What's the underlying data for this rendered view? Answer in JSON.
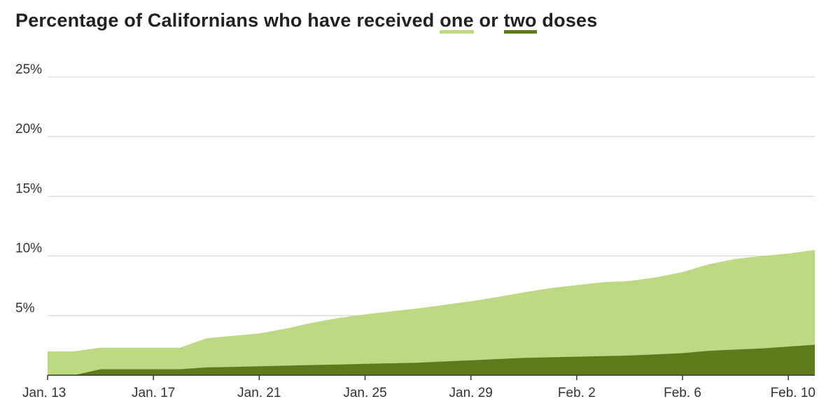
{
  "title": {
    "prefix": "Percentage of Californians who have received ",
    "one_word": "one",
    "middle": " or ",
    "two_word": "two",
    "suffix": " doses"
  },
  "colors": {
    "one_dose": "#bdd984",
    "two_doses": "#5e7a1c",
    "grid": "#d9d9d9",
    "axis": "#333333"
  },
  "chart_data": {
    "type": "area",
    "x": [
      "Jan. 13",
      "Jan. 14",
      "Jan. 15",
      "Jan. 16",
      "Jan. 17",
      "Jan. 18",
      "Jan. 19",
      "Jan. 20",
      "Jan. 21",
      "Jan. 22",
      "Jan. 23",
      "Jan. 24",
      "Jan. 25",
      "Jan. 26",
      "Jan. 27",
      "Jan. 28",
      "Jan. 29",
      "Jan. 30",
      "Jan. 31",
      "Feb. 1",
      "Feb. 2",
      "Feb. 3",
      "Feb. 4",
      "Feb. 5",
      "Feb. 6",
      "Feb. 7",
      "Feb. 8",
      "Feb. 9",
      "Feb. 10",
      "Feb. 11"
    ],
    "series": [
      {
        "name": "one",
        "values": [
          2.0,
          2.0,
          2.3,
          2.3,
          2.3,
          2.3,
          3.1,
          3.3,
          3.5,
          3.9,
          4.4,
          4.8,
          5.1,
          5.35,
          5.6,
          5.9,
          6.2,
          6.55,
          6.95,
          7.3,
          7.55,
          7.8,
          7.9,
          8.2,
          8.65,
          9.3,
          9.75,
          10.0,
          10.2,
          10.5
        ]
      },
      {
        "name": "two",
        "values": [
          0.0,
          0.0,
          0.5,
          0.5,
          0.5,
          0.5,
          0.65,
          0.7,
          0.75,
          0.8,
          0.85,
          0.9,
          0.95,
          1.0,
          1.05,
          1.15,
          1.25,
          1.35,
          1.45,
          1.5,
          1.55,
          1.6,
          1.65,
          1.75,
          1.85,
          2.05,
          2.15,
          2.25,
          2.4,
          2.55
        ]
      }
    ],
    "x_tick_labels": [
      "Jan. 13",
      "Jan. 17",
      "Jan. 21",
      "Jan. 25",
      "Jan. 29",
      "Feb. 2",
      "Feb. 6",
      "Feb. 10"
    ],
    "y_ticks": [
      5,
      10,
      15,
      20,
      25
    ],
    "y_tick_labels": [
      "5%",
      "10%",
      "15%",
      "20%",
      "25%"
    ],
    "ylim": [
      0,
      25
    ],
    "grid": true
  }
}
